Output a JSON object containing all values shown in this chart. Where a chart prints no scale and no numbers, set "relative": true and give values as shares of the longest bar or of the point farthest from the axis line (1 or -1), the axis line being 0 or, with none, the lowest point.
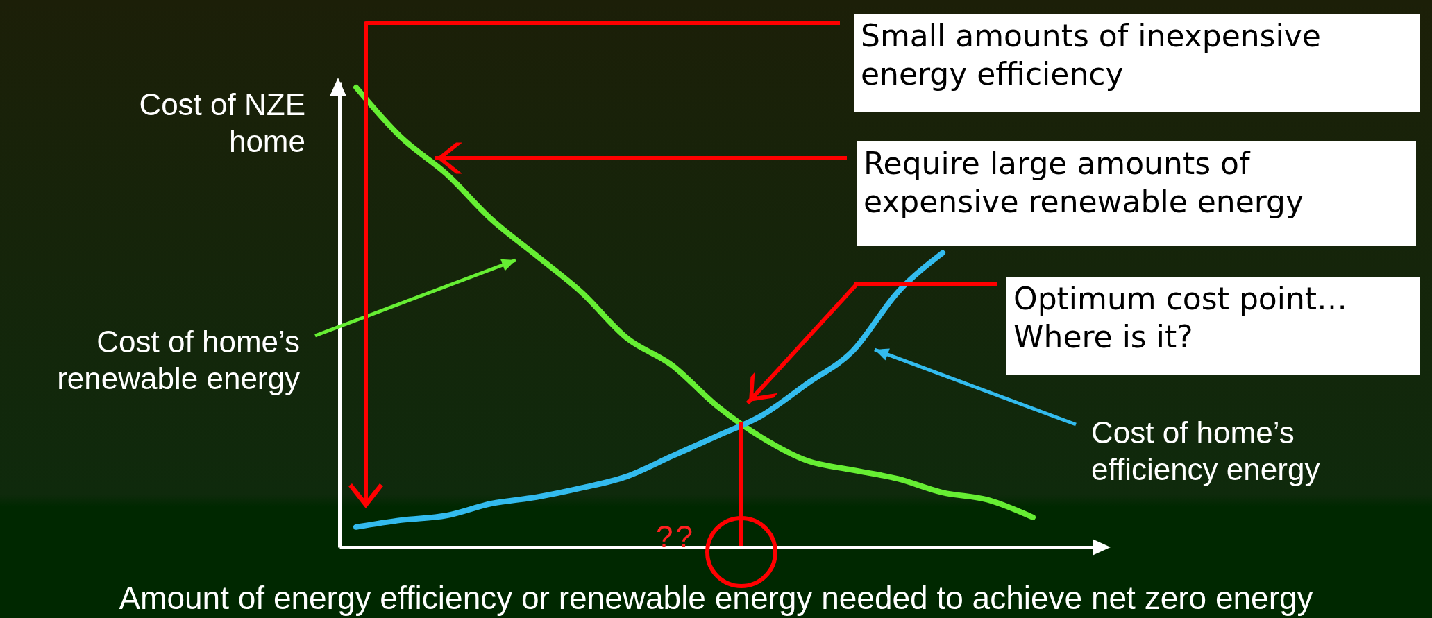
{
  "chart_data": {
    "type": "line",
    "relative": true,
    "xlabel": "Amount of energy efficiency or renewable energy needed to achieve net zero energy",
    "ylabel": "Cost of NZE home",
    "categories": [
      null,
      null,
      null,
      null,
      null,
      null,
      null,
      null,
      null,
      null,
      null,
      null,
      null,
      null,
      null,
      null
    ],
    "series": [
      {
        "name": "Cost of home’s renewable energy",
        "color": "#66ee33",
        "values": [
          1.0,
          0.891,
          0.812,
          0.713,
          0.634,
          0.554,
          0.455,
          0.396,
          0.307,
          0.238,
          0.188,
          0.168,
          0.149,
          0.119,
          0.103,
          0.065
        ]
      },
      {
        "name": "Cost of home’s efficiency energy",
        "color": "#33bbee",
        "values": [
          0.044,
          0.059,
          0.069,
          0.095,
          0.109,
          0.129,
          0.154,
          0.198,
          0.242,
          0.287,
          0.356,
          0.426,
          0.554,
          0.64,
          null,
          null
        ]
      }
    ],
    "annotations": [
      "Small amounts of inexpensive energy efficiency",
      "Require large amounts of expensive renewable energy",
      "Optimum cost point… Where is it?",
      "??"
    ]
  }
}
